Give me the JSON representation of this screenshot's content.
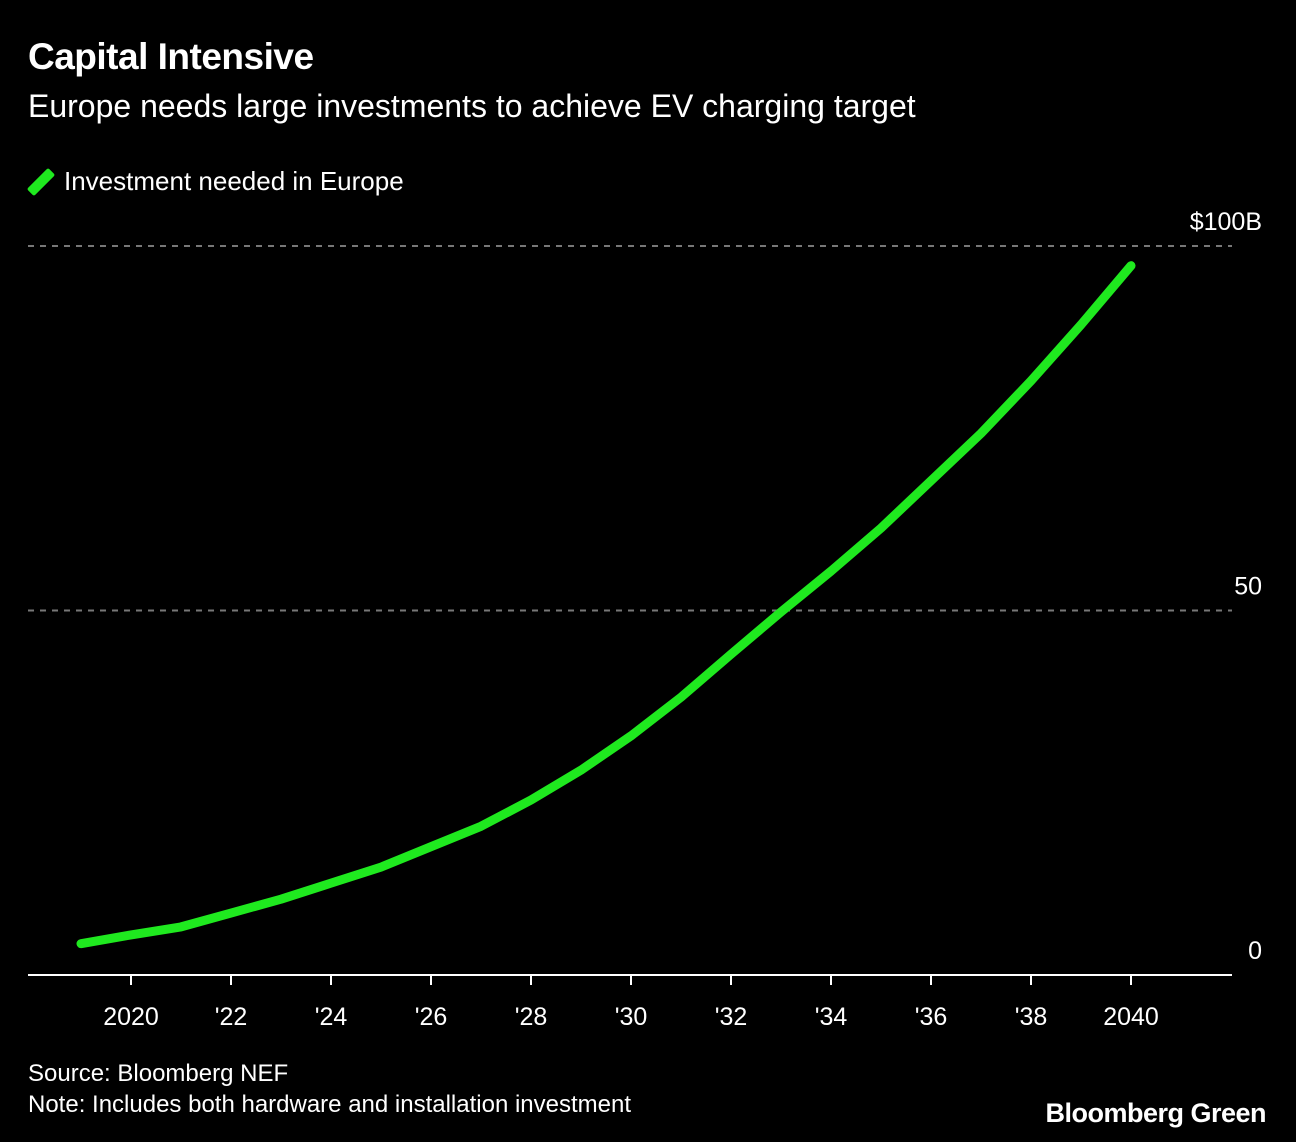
{
  "header": {
    "title": "Capital Intensive",
    "subtitle": "Europe needs large investments to achieve EV charging target"
  },
  "footer": {
    "source": "Source: Bloomberg NEF",
    "note": "Note: Includes both hardware and installation investment",
    "logo": "Bloomberg Green"
  },
  "colors": {
    "series": "#1fe91f",
    "background": "#000000",
    "grid": "#777777"
  },
  "chart_data": {
    "type": "line",
    "title": "Capital Intensive",
    "subtitle": "Europe needs large investments to achieve EV charging target",
    "xlabel": "",
    "ylabel": "",
    "ylim": [
      0,
      100
    ],
    "xlim": [
      2018,
      2041
    ],
    "y_ticks": [
      {
        "value": 0,
        "label": "0"
      },
      {
        "value": 50,
        "label": "50"
      },
      {
        "value": 100,
        "label": "$100B"
      }
    ],
    "x_ticks": [
      {
        "value": 2020,
        "label": "2020"
      },
      {
        "value": 2022,
        "label": "'22"
      },
      {
        "value": 2024,
        "label": "'24"
      },
      {
        "value": 2026,
        "label": "'26"
      },
      {
        "value": 2028,
        "label": "'28"
      },
      {
        "value": 2030,
        "label": "'30"
      },
      {
        "value": 2032,
        "label": "'32"
      },
      {
        "value": 2034,
        "label": "'34"
      },
      {
        "value": 2036,
        "label": "'36"
      },
      {
        "value": 2038,
        "label": "'38"
      },
      {
        "value": 2040,
        "label": "2040"
      }
    ],
    "grid": true,
    "legend_position": "top-left",
    "series": [
      {
        "name": "Investment needed in Europe",
        "x": [
          2019,
          2020,
          2021,
          2022,
          2023,
          2024,
          2025,
          2026,
          2027,
          2028,
          2029,
          2030,
          2031,
          2032,
          2033,
          2034,
          2035,
          2036,
          2037,
          2038,
          2039,
          2040
        ],
        "values": [
          4.3,
          5.5,
          6.6,
          8.5,
          10.4,
          12.6,
          14.8,
          17.6,
          20.4,
          24.0,
          28.1,
          32.8,
          38.1,
          44.0,
          49.8,
          55.4,
          61.3,
          67.8,
          74.3,
          81.5,
          89.2,
          97.3
        ]
      }
    ]
  }
}
